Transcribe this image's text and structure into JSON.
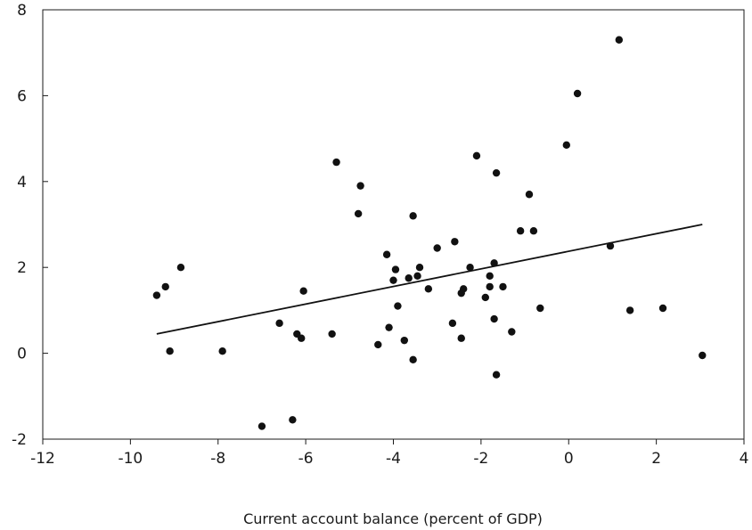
{
  "chart_data": {
    "type": "scatter",
    "title": "",
    "xlabel": "Current account balance (percent of GDP)",
    "ylabel": "",
    "xlim": [
      -12,
      4
    ],
    "ylim": [
      -2,
      8
    ],
    "x_ticks": [
      "-12",
      "-10",
      "-8",
      "-6",
      "-4",
      "-2",
      "0",
      "2",
      "4"
    ],
    "y_ticks": [
      "-2",
      "0",
      "2",
      "4",
      "6",
      "8"
    ],
    "grid": false,
    "legend": "none",
    "point_color": "#111111",
    "points": [
      {
        "x": -9.4,
        "y": 1.35
      },
      {
        "x": -9.2,
        "y": 1.55
      },
      {
        "x": -9.1,
        "y": 0.05
      },
      {
        "x": -8.85,
        "y": 2.0
      },
      {
        "x": -7.9,
        "y": 0.05
      },
      {
        "x": -7.0,
        "y": -1.7
      },
      {
        "x": -6.6,
        "y": 0.7
      },
      {
        "x": -6.3,
        "y": -1.55
      },
      {
        "x": -6.2,
        "y": 0.45
      },
      {
        "x": -6.1,
        "y": 0.35
      },
      {
        "x": -6.05,
        "y": 1.45
      },
      {
        "x": -5.4,
        "y": 0.45
      },
      {
        "x": -5.3,
        "y": 4.45
      },
      {
        "x": -4.8,
        "y": 3.25
      },
      {
        "x": -4.75,
        "y": 3.9
      },
      {
        "x": -4.35,
        "y": 0.2
      },
      {
        "x": -4.15,
        "y": 2.3
      },
      {
        "x": -4.1,
        "y": 0.6
      },
      {
        "x": -4.0,
        "y": 1.7
      },
      {
        "x": -3.95,
        "y": 1.95
      },
      {
        "x": -3.9,
        "y": 1.1
      },
      {
        "x": -3.75,
        "y": 0.3
      },
      {
        "x": -3.65,
        "y": 1.75
      },
      {
        "x": -3.55,
        "y": -0.15
      },
      {
        "x": -3.55,
        "y": 3.2
      },
      {
        "x": -3.45,
        "y": 1.8
      },
      {
        "x": -3.4,
        "y": 2.0
      },
      {
        "x": -3.2,
        "y": 1.5
      },
      {
        "x": -3.0,
        "y": 2.45
      },
      {
        "x": -2.65,
        "y": 0.7
      },
      {
        "x": -2.6,
        "y": 2.6
      },
      {
        "x": -2.45,
        "y": 0.35
      },
      {
        "x": -2.45,
        "y": 1.4
      },
      {
        "x": -2.4,
        "y": 1.5
      },
      {
        "x": -2.25,
        "y": 2.0
      },
      {
        "x": -2.1,
        "y": 4.6
      },
      {
        "x": -1.9,
        "y": 1.3
      },
      {
        "x": -1.8,
        "y": 1.55
      },
      {
        "x": -1.8,
        "y": 1.8
      },
      {
        "x": -1.7,
        "y": 0.8
      },
      {
        "x": -1.7,
        "y": 2.1
      },
      {
        "x": -1.65,
        "y": -0.5
      },
      {
        "x": -1.65,
        "y": 4.2
      },
      {
        "x": -1.5,
        "y": 1.55
      },
      {
        "x": -1.3,
        "y": 0.5
      },
      {
        "x": -1.1,
        "y": 2.85
      },
      {
        "x": -0.9,
        "y": 3.7
      },
      {
        "x": -0.8,
        "y": 2.85
      },
      {
        "x": -0.65,
        "y": 1.05
      },
      {
        "x": -0.05,
        "y": 4.85
      },
      {
        "x": 0.2,
        "y": 6.05
      },
      {
        "x": 0.95,
        "y": 2.5
      },
      {
        "x": 1.15,
        "y": 7.3
      },
      {
        "x": 1.4,
        "y": 1.0
      },
      {
        "x": 2.15,
        "y": 1.05
      },
      {
        "x": 3.05,
        "y": -0.05
      }
    ],
    "trend_line": {
      "x": [
        -9.4,
        3.05
      ],
      "y": [
        0.45,
        3.0
      ]
    }
  }
}
